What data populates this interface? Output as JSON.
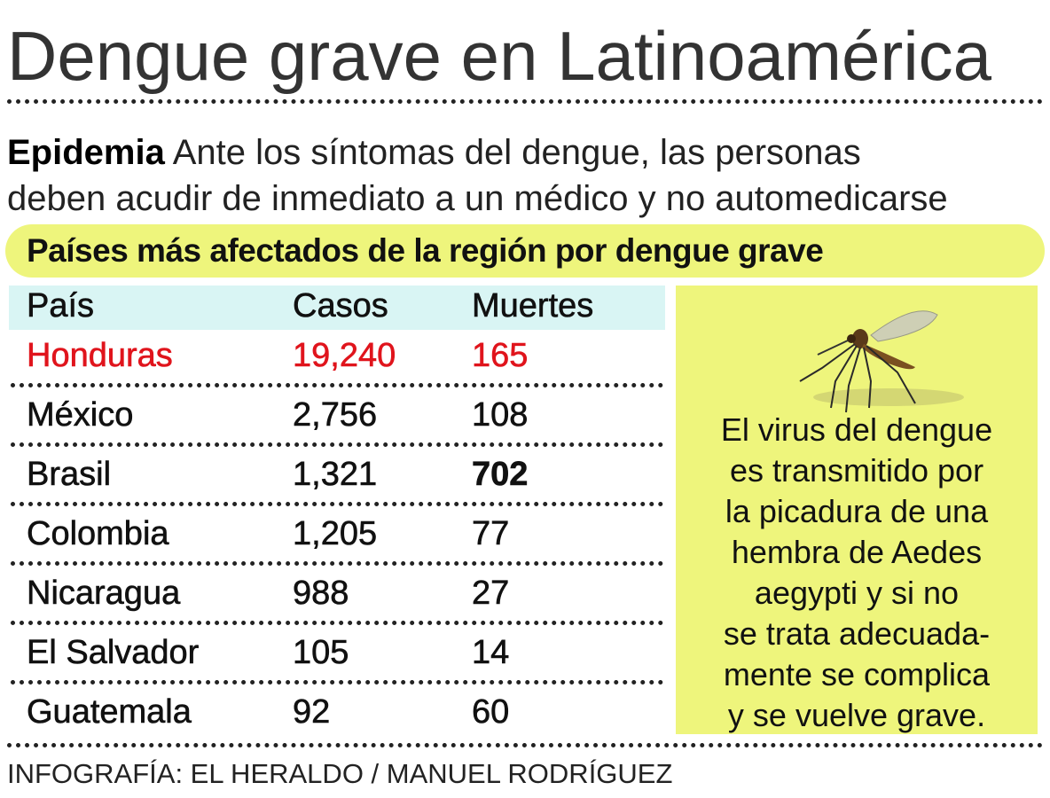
{
  "title": "Dengue grave en Latinoamérica",
  "subtitle": {
    "lead": "Epidemia",
    "line1": "Ante los síntomas del dengue, las personas",
    "line2": "deben acudir de inmediato a un médico  y no automedicarse"
  },
  "table_title": "Países más afectados de la región por dengue grave",
  "table": {
    "headers": [
      "País",
      "Casos",
      "Muertes"
    ],
    "rows": [
      {
        "pais": "Honduras",
        "casos": "19,240",
        "muertes": "165",
        "highlight": true
      },
      {
        "pais": "México",
        "casos": "2,756",
        "muertes": "108"
      },
      {
        "pais": "Brasil",
        "casos": "1,321",
        "muertes": "702",
        "bold_muertes": true
      },
      {
        "pais": "Colombia",
        "casos": "1,205",
        "muertes": "77"
      },
      {
        "pais": "Nicaragua",
        "casos": "988",
        "muertes": "27"
      },
      {
        "pais": "El Salvador",
        "casos": "105",
        "muertes": "14"
      },
      {
        "pais": "Guatemala",
        "casos": "92",
        "muertes": "60"
      }
    ]
  },
  "sidebox": {
    "icon": "mosquito-icon",
    "lines": [
      "El virus del dengue",
      "es transmitido por",
      "la picadura de una",
      "hembra de Aedes",
      "aegypti y si no",
      "se trata adecuada-",
      "mente se complica",
      "y se vuelve grave."
    ]
  },
  "credit": "INFOGRAFÍA: EL HERALDO / MANUEL RODRÍGUEZ",
  "colors": {
    "highlight_red": "#e0141c",
    "yellow": "#eef57c",
    "header_cyan": "#d9f5f4"
  }
}
